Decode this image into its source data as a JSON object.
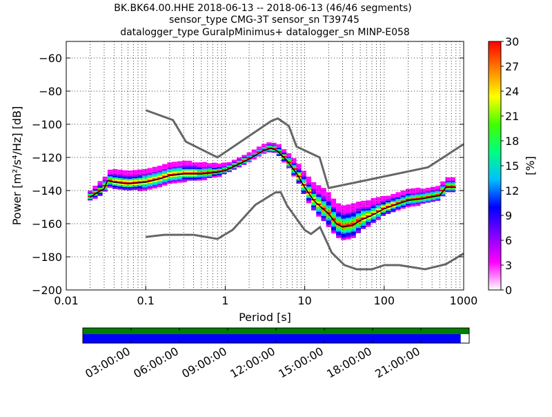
{
  "chart_data": {
    "type": "heatmap",
    "title_lines": [
      "BK.BK64.00.HHE   2018-06-13 -- 2018-06-13  (46/46 segments)",
      "sensor_type CMG-3T sensor_sn T39745",
      "datalogger_type GuralpMinimus+ datalogger_sn MINP-E058"
    ],
    "xlabel": "Period [s]",
    "ylabel": "Power [m²/s⁴/Hz] [dB]",
    "xscale": "log",
    "xlim": [
      0.01,
      1000
    ],
    "ylim": [
      -200,
      -50
    ],
    "xticks": [
      {
        "v": 0.01,
        "label": "0.01"
      },
      {
        "v": 0.1,
        "label": "0.1"
      },
      {
        "v": 1,
        "label": "1"
      },
      {
        "v": 10,
        "label": "10"
      },
      {
        "v": 100,
        "label": "100"
      },
      {
        "v": 1000,
        "label": "1000"
      }
    ],
    "yticks": [
      {
        "v": -60,
        "label": "−60"
      },
      {
        "v": -80,
        "label": "−80"
      },
      {
        "v": -100,
        "label": "−100"
      },
      {
        "v": -120,
        "label": "−120"
      },
      {
        "v": -140,
        "label": "−140"
      },
      {
        "v": -160,
        "label": "−160"
      },
      {
        "v": -180,
        "label": "−180"
      },
      {
        "v": -200,
        "label": "−200"
      }
    ],
    "grid": true,
    "colorbar": {
      "label": "[%]",
      "range": [
        0,
        30
      ],
      "ticks": [
        "0",
        "3",
        "6",
        "9",
        "12",
        "15",
        "18",
        "21",
        "24",
        "27",
        "30"
      ],
      "colors": [
        "#ffffff",
        "#ff00ff",
        "#8000ff",
        "#0000ff",
        "#00c0ff",
        "#00ff80",
        "#40ff00",
        "#ffff00",
        "#ff8000",
        "#ff0000"
      ]
    },
    "nhnm": [
      [
        0.1,
        -91.5
      ],
      [
        0.22,
        -97.4
      ],
      [
        0.32,
        -110.5
      ],
      [
        0.8,
        -120
      ],
      [
        3.8,
        -98
      ],
      [
        4.6,
        -96.5
      ],
      [
        6.3,
        -101
      ],
      [
        7.9,
        -113.5
      ],
      [
        15.4,
        -120
      ],
      [
        20,
        -138.5
      ],
      [
        354.8,
        -126
      ],
      [
        1000,
        -112
      ]
    ],
    "nlnm": [
      [
        0.1,
        -168
      ],
      [
        0.17,
        -166.7
      ],
      [
        0.4,
        -166.7
      ],
      [
        0.8,
        -169.2
      ],
      [
        1.24,
        -163.7
      ],
      [
        2.4,
        -148.6
      ],
      [
        4.3,
        -141.1
      ],
      [
        5,
        -141.1
      ],
      [
        6,
        -149
      ],
      [
        10,
        -163.8
      ],
      [
        12,
        -166.2
      ],
      [
        15.6,
        -162.1
      ],
      [
        21.9,
        -177.5
      ],
      [
        31.6,
        -185
      ],
      [
        45,
        -187.5
      ],
      [
        70,
        -187.5
      ],
      [
        101,
        -185
      ],
      [
        154,
        -185
      ],
      [
        328,
        -187.5
      ],
      [
        600,
        -184.4
      ],
      [
        1000,
        -178
      ]
    ],
    "mode": [
      [
        0.02,
        -144
      ],
      [
        0.025,
        -141
      ],
      [
        0.03,
        -139
      ],
      [
        0.033,
        -134
      ],
      [
        0.04,
        -135
      ],
      [
        0.06,
        -136
      ],
      [
        0.1,
        -135
      ],
      [
        0.15,
        -133
      ],
      [
        0.2,
        -131
      ],
      [
        0.3,
        -130
      ],
      [
        0.5,
        -130
      ],
      [
        0.8,
        -129
      ],
      [
        1,
        -128
      ],
      [
        1.5,
        -124
      ],
      [
        2,
        -121
      ],
      [
        3,
        -116
      ],
      [
        3.8,
        -114.5
      ],
      [
        4.5,
        -116
      ],
      [
        6,
        -122
      ],
      [
        8,
        -130
      ],
      [
        10,
        -138
      ],
      [
        13,
        -146
      ],
      [
        16,
        -150
      ],
      [
        20,
        -154
      ],
      [
        25,
        -160
      ],
      [
        30,
        -162
      ],
      [
        40,
        -161
      ],
      [
        50,
        -158
      ],
      [
        70,
        -155
      ],
      [
        100,
        -151
      ],
      [
        150,
        -148
      ],
      [
        200,
        -146
      ],
      [
        300,
        -145
      ],
      [
        500,
        -143
      ],
      [
        600,
        -138
      ],
      [
        800,
        -138
      ]
    ],
    "spread_db": [
      [
        0.02,
        3
      ],
      [
        0.04,
        6
      ],
      [
        0.1,
        7
      ],
      [
        0.3,
        7
      ],
      [
        1,
        3
      ],
      [
        3,
        2
      ],
      [
        6,
        4
      ],
      [
        10,
        8
      ],
      [
        20,
        12
      ],
      [
        40,
        12
      ],
      [
        100,
        6
      ],
      [
        300,
        5
      ],
      [
        800,
        5
      ]
    ],
    "timeline": {
      "coverage_fraction": 0.978,
      "ticks": [
        "03:00:00",
        "06:00:00",
        "09:00:00",
        "12:00:00",
        "15:00:00",
        "18:00:00",
        "21:00:00"
      ],
      "colors": {
        "segments": "#008000",
        "data": "#0000ff"
      }
    }
  }
}
